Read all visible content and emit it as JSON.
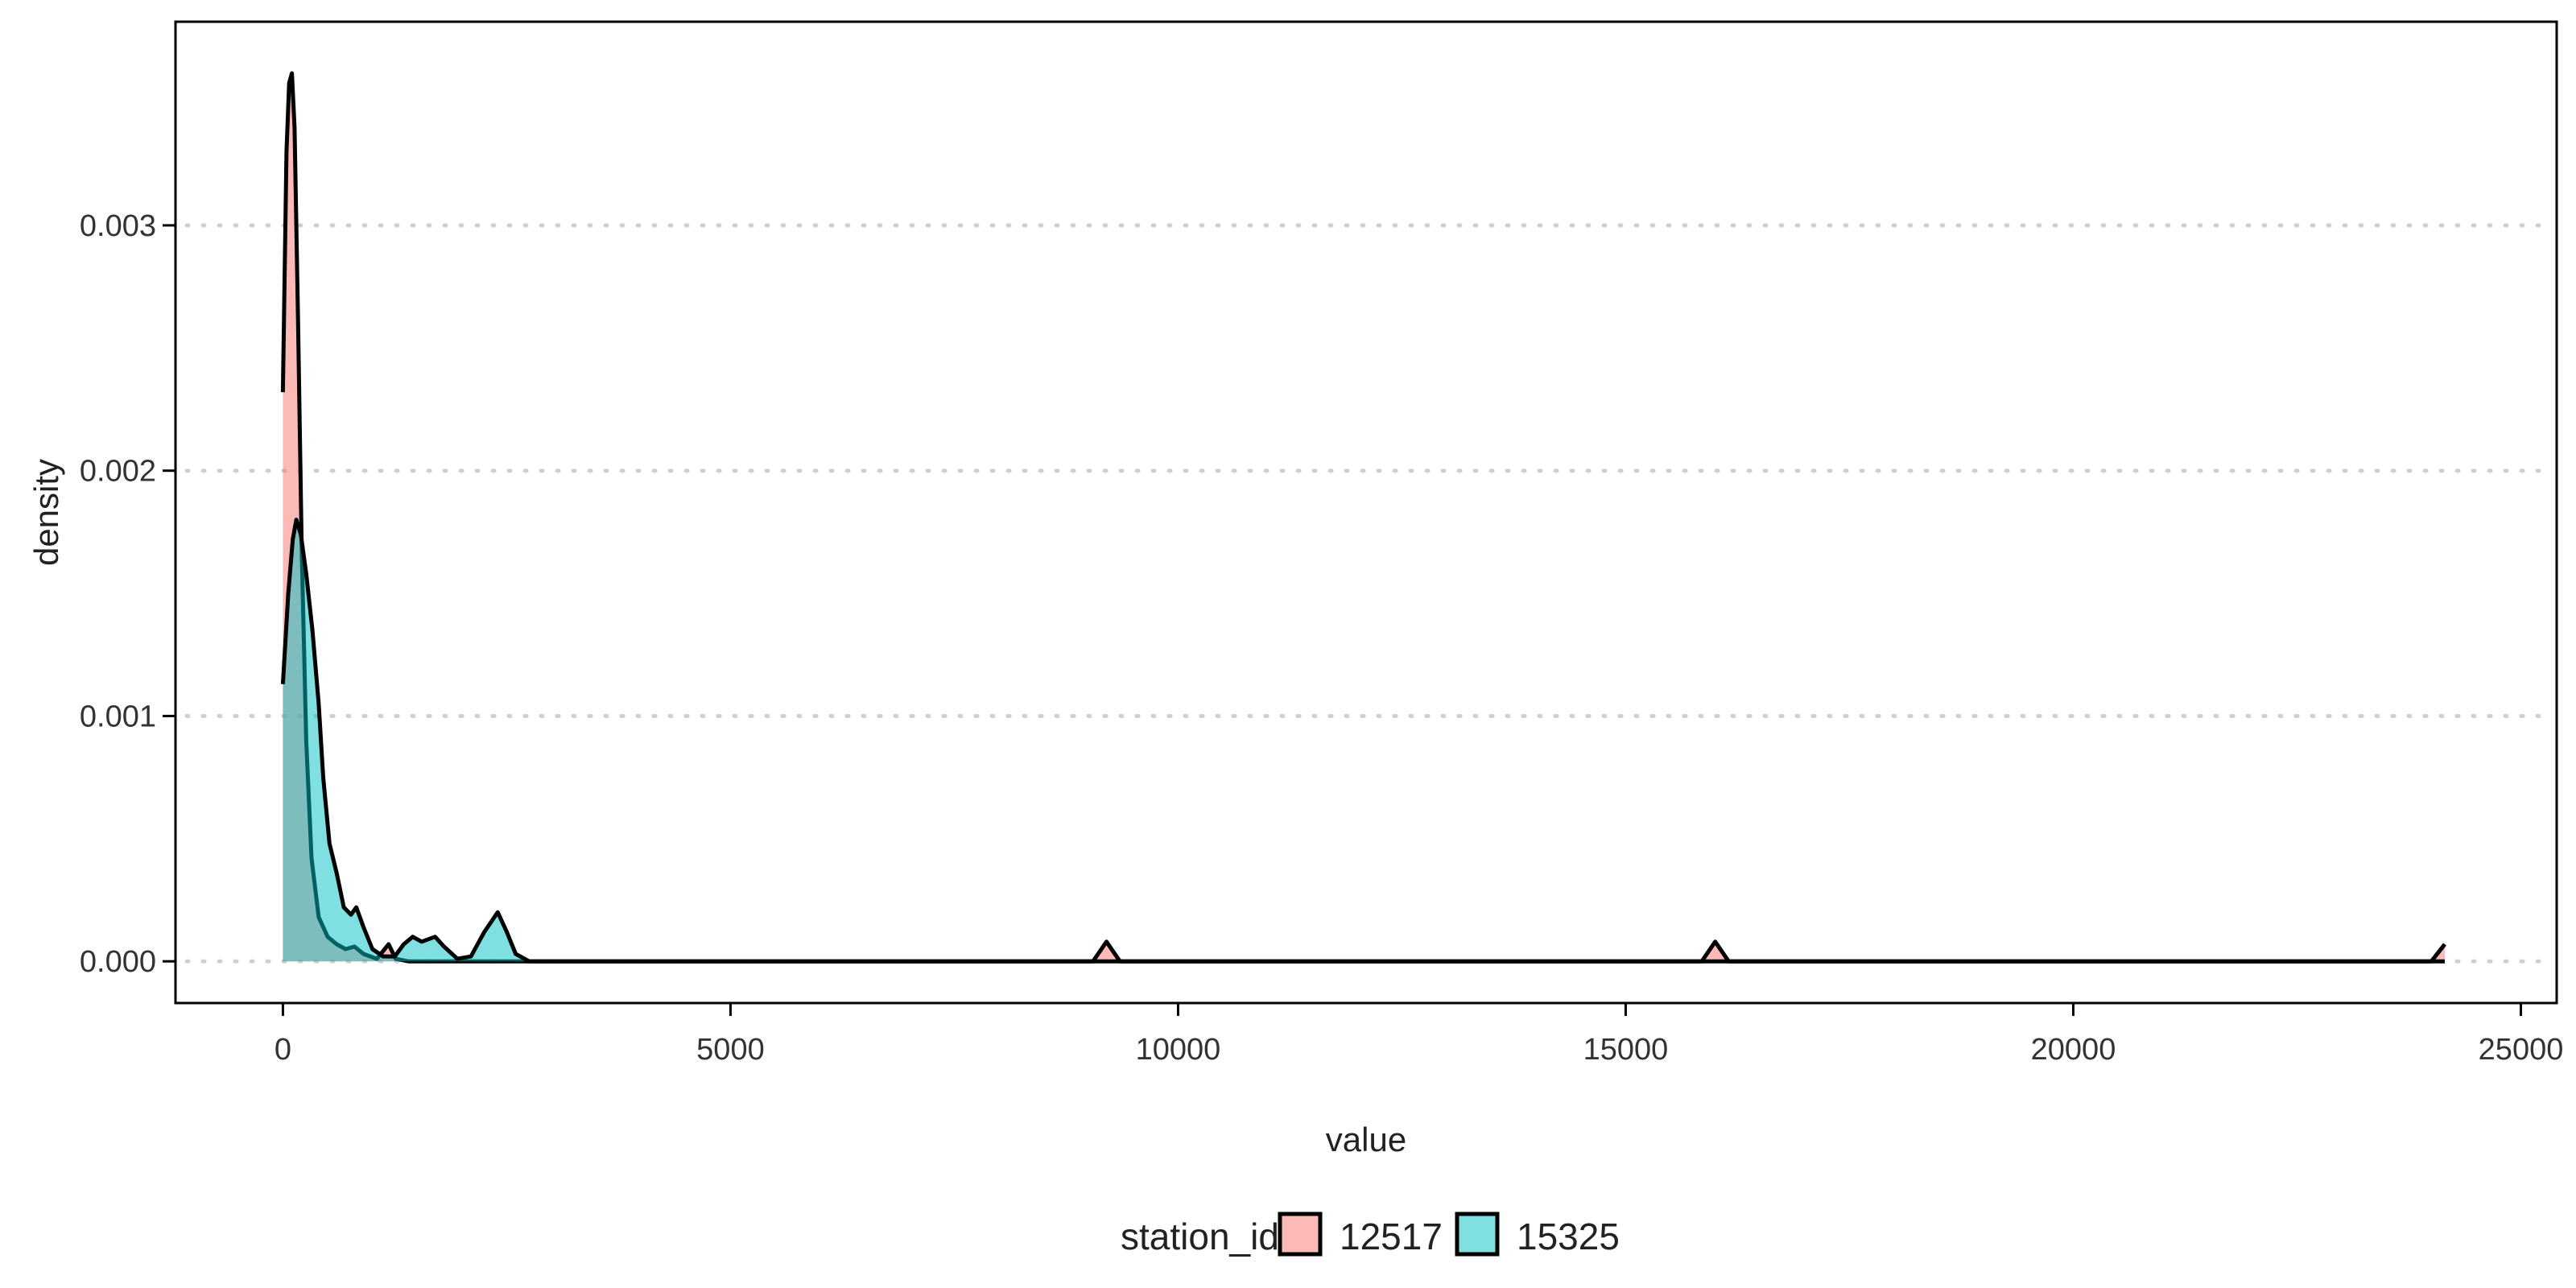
{
  "chart_data": {
    "type": "area",
    "xlabel": "value",
    "ylabel": "density",
    "xlim": [
      -1200,
      25400
    ],
    "ylim": [
      -0.00017,
      0.00383
    ],
    "x_ticks": [
      0,
      5000,
      10000,
      15000,
      20000,
      25000
    ],
    "x_tick_labels": [
      "0",
      "5000",
      "10000",
      "15000",
      "20000",
      "25000"
    ],
    "y_ticks": [
      0.0,
      0.001,
      0.002,
      0.003
    ],
    "y_tick_labels": [
      "0.000",
      "0.001",
      "0.002",
      "0.003"
    ],
    "grid": "horizontal dotted",
    "legend": {
      "title": "station_id",
      "position": "bottom",
      "entries": [
        "12517",
        "15325"
      ]
    },
    "series": [
      {
        "name": "12517",
        "color": "#F8766D",
        "points": [
          [
            0,
            0.00232
          ],
          [
            40,
            0.0033
          ],
          [
            70,
            0.00358
          ],
          [
            100,
            0.00362
          ],
          [
            130,
            0.0034
          ],
          [
            170,
            0.0026
          ],
          [
            210,
            0.00168
          ],
          [
            260,
            0.0009
          ],
          [
            320,
            0.00042
          ],
          [
            400,
            0.00018
          ],
          [
            500,
            0.0001
          ],
          [
            600,
            7e-05
          ],
          [
            700,
            5e-05
          ],
          [
            800,
            6e-05
          ],
          [
            900,
            3e-05
          ],
          [
            1050,
            1e-05
          ],
          [
            1180,
            7e-05
          ],
          [
            1260,
            1e-05
          ],
          [
            1400,
            0.0
          ],
          [
            9050,
            0.0
          ],
          [
            9200,
            8e-05
          ],
          [
            9350,
            0.0
          ],
          [
            15850,
            0.0
          ],
          [
            16000,
            8e-05
          ],
          [
            16150,
            0.0
          ],
          [
            24000,
            0.0
          ],
          [
            24150,
            7e-05
          ]
        ]
      },
      {
        "name": "15325",
        "color": "#00BFC4",
        "points": [
          [
            0,
            0.00113
          ],
          [
            60,
            0.0015
          ],
          [
            110,
            0.00172
          ],
          [
            150,
            0.0018
          ],
          [
            200,
            0.00174
          ],
          [
            260,
            0.00158
          ],
          [
            330,
            0.00135
          ],
          [
            400,
            0.00105
          ],
          [
            450,
            0.00075
          ],
          [
            520,
            0.00048
          ],
          [
            600,
            0.00036
          ],
          [
            680,
            0.00022
          ],
          [
            760,
            0.00019
          ],
          [
            820,
            0.00022
          ],
          [
            900,
            0.00014
          ],
          [
            1000,
            5e-05
          ],
          [
            1120,
            2e-05
          ],
          [
            1250,
            2e-05
          ],
          [
            1350,
            7e-05
          ],
          [
            1450,
            0.0001
          ],
          [
            1550,
            8e-05
          ],
          [
            1700,
            0.0001
          ],
          [
            1800,
            6e-05
          ],
          [
            1950,
            1e-05
          ],
          [
            2100,
            2e-05
          ],
          [
            2250,
            0.00012
          ],
          [
            2400,
            0.0002
          ],
          [
            2500,
            0.00012
          ],
          [
            2600,
            3e-05
          ],
          [
            2750,
            0.0
          ],
          [
            24150,
            0.0
          ]
        ]
      }
    ]
  }
}
